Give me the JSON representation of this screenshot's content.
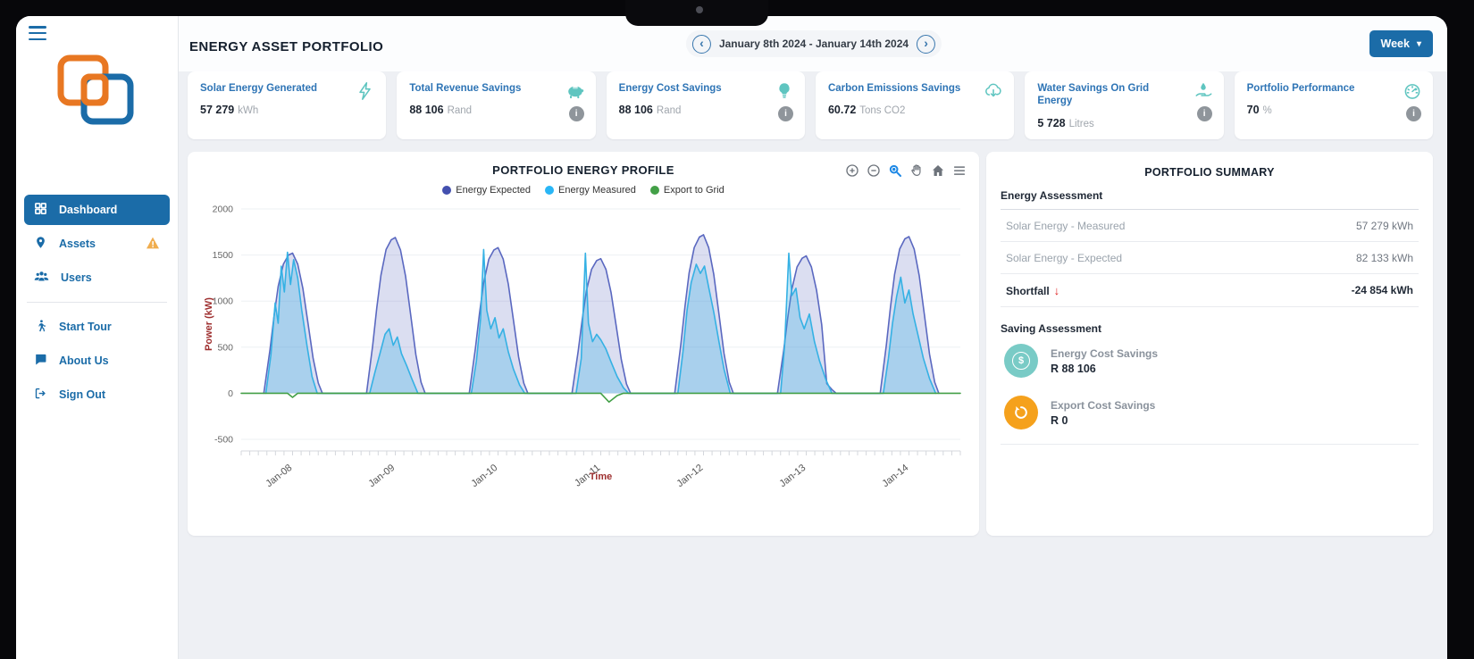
{
  "ui": {
    "info_glyph": "i",
    "prev_glyph": "‹",
    "next_glyph": "›",
    "caret": "▾",
    "shortfall_arrow": "↓"
  },
  "header": {
    "title": "ENERGY ASSET PORTFOLIO",
    "date_range": "January 8th 2024 - January 14th 2024",
    "period_label": "Week"
  },
  "sidebar": {
    "items": [
      {
        "label": "Dashboard",
        "active": true
      },
      {
        "label": "Assets",
        "warning": true
      },
      {
        "label": "Users"
      }
    ],
    "secondary": [
      {
        "label": "Start Tour"
      },
      {
        "label": "About Us"
      },
      {
        "label": "Sign Out"
      }
    ]
  },
  "kpi_cards": [
    {
      "title": "Solar Energy Generated",
      "value": "57 279",
      "unit": "kWh",
      "icon": "bolt-icon",
      "info": false
    },
    {
      "title": "Total Revenue Savings",
      "value": "88 106",
      "unit": "Rand",
      "icon": "piggy-bank-icon",
      "info": true
    },
    {
      "title": "Energy Cost Savings",
      "value": "88 106",
      "unit": "Rand",
      "icon": "lightbulb-icon",
      "info": true
    },
    {
      "title": "Carbon Emissions Savings",
      "value": "60.72",
      "unit": "Tons CO2",
      "icon": "cloud-download-icon",
      "info": false
    },
    {
      "title": "Water Savings On Grid Energy",
      "value": "5 728",
      "unit": "Litres",
      "icon": "water-hand-icon",
      "info": true
    },
    {
      "title": "Portfolio Performance",
      "value": "70",
      "unit": "%",
      "icon": "gauge-icon",
      "info": true
    }
  ],
  "chart_data": {
    "type": "area",
    "title": "PORTFOLIO ENERGY PROFILE",
    "xlabel": "Time",
    "ylabel": "Power (kW)",
    "ylim": [
      -500,
      2000
    ],
    "yticks": [
      2000,
      1500,
      1000,
      500,
      0,
      -500
    ],
    "x_domain": [
      0,
      7
    ],
    "x_categories": [
      "Jan-08",
      "Jan-09",
      "Jan-10",
      "Jan-11",
      "Jan-12",
      "Jan-13",
      "Jan-14"
    ],
    "minor_ticks_per_day": 12,
    "grid": true,
    "legend_position": "top",
    "legend": [
      {
        "name": "Energy Expected",
        "color": "#4350af"
      },
      {
        "name": "Energy Measured",
        "color": "#29b6f6"
      },
      {
        "name": "Export to Grid",
        "color": "#43a047"
      }
    ],
    "series": [
      {
        "name": "Energy Expected",
        "color": "#5a68c0",
        "fill": "rgba(90,104,192,0.22)",
        "points": [
          [
            0.22,
            0
          ],
          [
            0.28,
            470
          ],
          [
            0.32,
            840
          ],
          [
            0.36,
            1160
          ],
          [
            0.41,
            1400
          ],
          [
            0.46,
            1500
          ],
          [
            0.5,
            1520
          ],
          [
            0.55,
            1400
          ],
          [
            0.6,
            1140
          ],
          [
            0.65,
            760
          ],
          [
            0.7,
            380
          ],
          [
            0.75,
            110
          ],
          [
            0.79,
            0
          ],
          [
            1.22,
            0
          ],
          [
            1.28,
            520
          ],
          [
            1.32,
            930
          ],
          [
            1.36,
            1280
          ],
          [
            1.41,
            1560
          ],
          [
            1.46,
            1665
          ],
          [
            1.5,
            1690
          ],
          [
            1.55,
            1555
          ],
          [
            1.6,
            1270
          ],
          [
            1.65,
            845
          ],
          [
            1.7,
            420
          ],
          [
            1.75,
            120
          ],
          [
            1.79,
            0
          ],
          [
            2.22,
            0
          ],
          [
            2.28,
            490
          ],
          [
            2.32,
            870
          ],
          [
            2.36,
            1200
          ],
          [
            2.41,
            1455
          ],
          [
            2.46,
            1555
          ],
          [
            2.5,
            1580
          ],
          [
            2.55,
            1455
          ],
          [
            2.6,
            1185
          ],
          [
            2.65,
            790
          ],
          [
            2.7,
            395
          ],
          [
            2.75,
            110
          ],
          [
            2.79,
            0
          ],
          [
            3.22,
            0
          ],
          [
            3.28,
            455
          ],
          [
            3.32,
            805
          ],
          [
            3.36,
            1110
          ],
          [
            3.41,
            1345
          ],
          [
            3.46,
            1440
          ],
          [
            3.5,
            1460
          ],
          [
            3.55,
            1345
          ],
          [
            3.6,
            1095
          ],
          [
            3.65,
            730
          ],
          [
            3.7,
            365
          ],
          [
            3.75,
            100
          ],
          [
            3.79,
            0
          ],
          [
            4.22,
            0
          ],
          [
            4.28,
            535
          ],
          [
            4.32,
            945
          ],
          [
            4.36,
            1305
          ],
          [
            4.41,
            1580
          ],
          [
            4.46,
            1695
          ],
          [
            4.5,
            1720
          ],
          [
            4.55,
            1580
          ],
          [
            4.6,
            1290
          ],
          [
            4.65,
            860
          ],
          [
            4.7,
            430
          ],
          [
            4.75,
            120
          ],
          [
            4.79,
            0
          ],
          [
            5.22,
            0
          ],
          [
            5.28,
            460
          ],
          [
            5.32,
            820
          ],
          [
            5.36,
            1130
          ],
          [
            5.41,
            1370
          ],
          [
            5.46,
            1465
          ],
          [
            5.5,
            1490
          ],
          [
            5.55,
            1370
          ],
          [
            5.6,
            1120
          ],
          [
            5.65,
            745
          ],
          [
            5.7,
            105
          ],
          [
            5.75,
            40
          ],
          [
            5.79,
            0
          ],
          [
            6.22,
            0
          ],
          [
            6.28,
            525
          ],
          [
            6.32,
            935
          ],
          [
            6.36,
            1290
          ],
          [
            6.41,
            1565
          ],
          [
            6.46,
            1675
          ],
          [
            6.5,
            1700
          ],
          [
            6.55,
            1565
          ],
          [
            6.6,
            1275
          ],
          [
            6.65,
            850
          ],
          [
            6.7,
            425
          ],
          [
            6.75,
            120
          ],
          [
            6.79,
            0
          ]
        ]
      },
      {
        "name": "Energy Measured",
        "color": "#35b1e4",
        "fill": "rgba(53,177,228,0.30)",
        "points": [
          [
            0.24,
            0
          ],
          [
            0.29,
            420
          ],
          [
            0.33,
            980
          ],
          [
            0.36,
            760
          ],
          [
            0.39,
            1380
          ],
          [
            0.42,
            1100
          ],
          [
            0.45,
            1530
          ],
          [
            0.48,
            1180
          ],
          [
            0.51,
            1450
          ],
          [
            0.55,
            1250
          ],
          [
            0.59,
            900
          ],
          [
            0.64,
            520
          ],
          [
            0.69,
            180
          ],
          [
            0.74,
            0
          ],
          [
            1.25,
            0
          ],
          [
            1.3,
            220
          ],
          [
            1.35,
            430
          ],
          [
            1.4,
            640
          ],
          [
            1.44,
            700
          ],
          [
            1.48,
            520
          ],
          [
            1.52,
            610
          ],
          [
            1.56,
            430
          ],
          [
            1.61,
            300
          ],
          [
            1.66,
            160
          ],
          [
            1.72,
            0
          ],
          [
            2.24,
            0
          ],
          [
            2.29,
            350
          ],
          [
            2.33,
            800
          ],
          [
            2.36,
            1560
          ],
          [
            2.39,
            900
          ],
          [
            2.43,
            700
          ],
          [
            2.47,
            820
          ],
          [
            2.51,
            600
          ],
          [
            2.55,
            700
          ],
          [
            2.6,
            450
          ],
          [
            2.65,
            260
          ],
          [
            2.71,
            90
          ],
          [
            2.76,
            0
          ],
          [
            3.26,
            0
          ],
          [
            3.31,
            380
          ],
          [
            3.35,
            1520
          ],
          [
            3.38,
            760
          ],
          [
            3.42,
            560
          ],
          [
            3.46,
            640
          ],
          [
            3.5,
            580
          ],
          [
            3.55,
            480
          ],
          [
            3.6,
            340
          ],
          [
            3.66,
            180
          ],
          [
            3.72,
            60
          ],
          [
            3.77,
            0
          ],
          [
            4.25,
            0
          ],
          [
            4.3,
            450
          ],
          [
            4.34,
            900
          ],
          [
            4.38,
            1200
          ],
          [
            4.43,
            1400
          ],
          [
            4.47,
            1300
          ],
          [
            4.51,
            1380
          ],
          [
            4.55,
            1150
          ],
          [
            4.6,
            880
          ],
          [
            4.65,
            560
          ],
          [
            4.7,
            260
          ],
          [
            4.76,
            0
          ],
          [
            5.25,
            0
          ],
          [
            5.29,
            520
          ],
          [
            5.33,
            1520
          ],
          [
            5.36,
            1060
          ],
          [
            5.4,
            1140
          ],
          [
            5.44,
            820
          ],
          [
            5.48,
            700
          ],
          [
            5.53,
            860
          ],
          [
            5.58,
            560
          ],
          [
            5.63,
            350
          ],
          [
            5.69,
            150
          ],
          [
            5.75,
            0
          ],
          [
            6.25,
            0
          ],
          [
            6.3,
            380
          ],
          [
            6.34,
            760
          ],
          [
            6.38,
            1050
          ],
          [
            6.42,
            1260
          ],
          [
            6.46,
            980
          ],
          [
            6.5,
            1120
          ],
          [
            6.54,
            860
          ],
          [
            6.59,
            620
          ],
          [
            6.64,
            380
          ],
          [
            6.7,
            160
          ],
          [
            6.76,
            0
          ]
        ]
      },
      {
        "name": "Export to Grid",
        "color": "#43a047",
        "fill": "none",
        "points": [
          [
            0,
            0
          ],
          [
            0.45,
            0
          ],
          [
            0.5,
            -45
          ],
          [
            0.55,
            0
          ],
          [
            3.5,
            0
          ],
          [
            3.58,
            -95
          ],
          [
            3.66,
            -25
          ],
          [
            3.72,
            0
          ],
          [
            7,
            0
          ]
        ]
      }
    ]
  },
  "summary": {
    "title": "PORTFOLIO SUMMARY",
    "energy_heading": "Energy Assessment",
    "energy_rows": [
      {
        "label": "Solar Energy - Measured",
        "value": "57 279 kWh"
      },
      {
        "label": "Solar Energy - Expected",
        "value": "82 133 kWh"
      },
      {
        "label": "Shortfall",
        "value": "-24 854 kWh"
      }
    ],
    "saving_heading": "Saving Assessment",
    "saving_items": [
      {
        "label": "Energy Cost Savings",
        "value": "R 88 106",
        "glyph": "$",
        "color": "#79cbc6"
      },
      {
        "label": "Export Cost Savings",
        "value": "R 0",
        "color": "#f5a11c"
      }
    ]
  }
}
